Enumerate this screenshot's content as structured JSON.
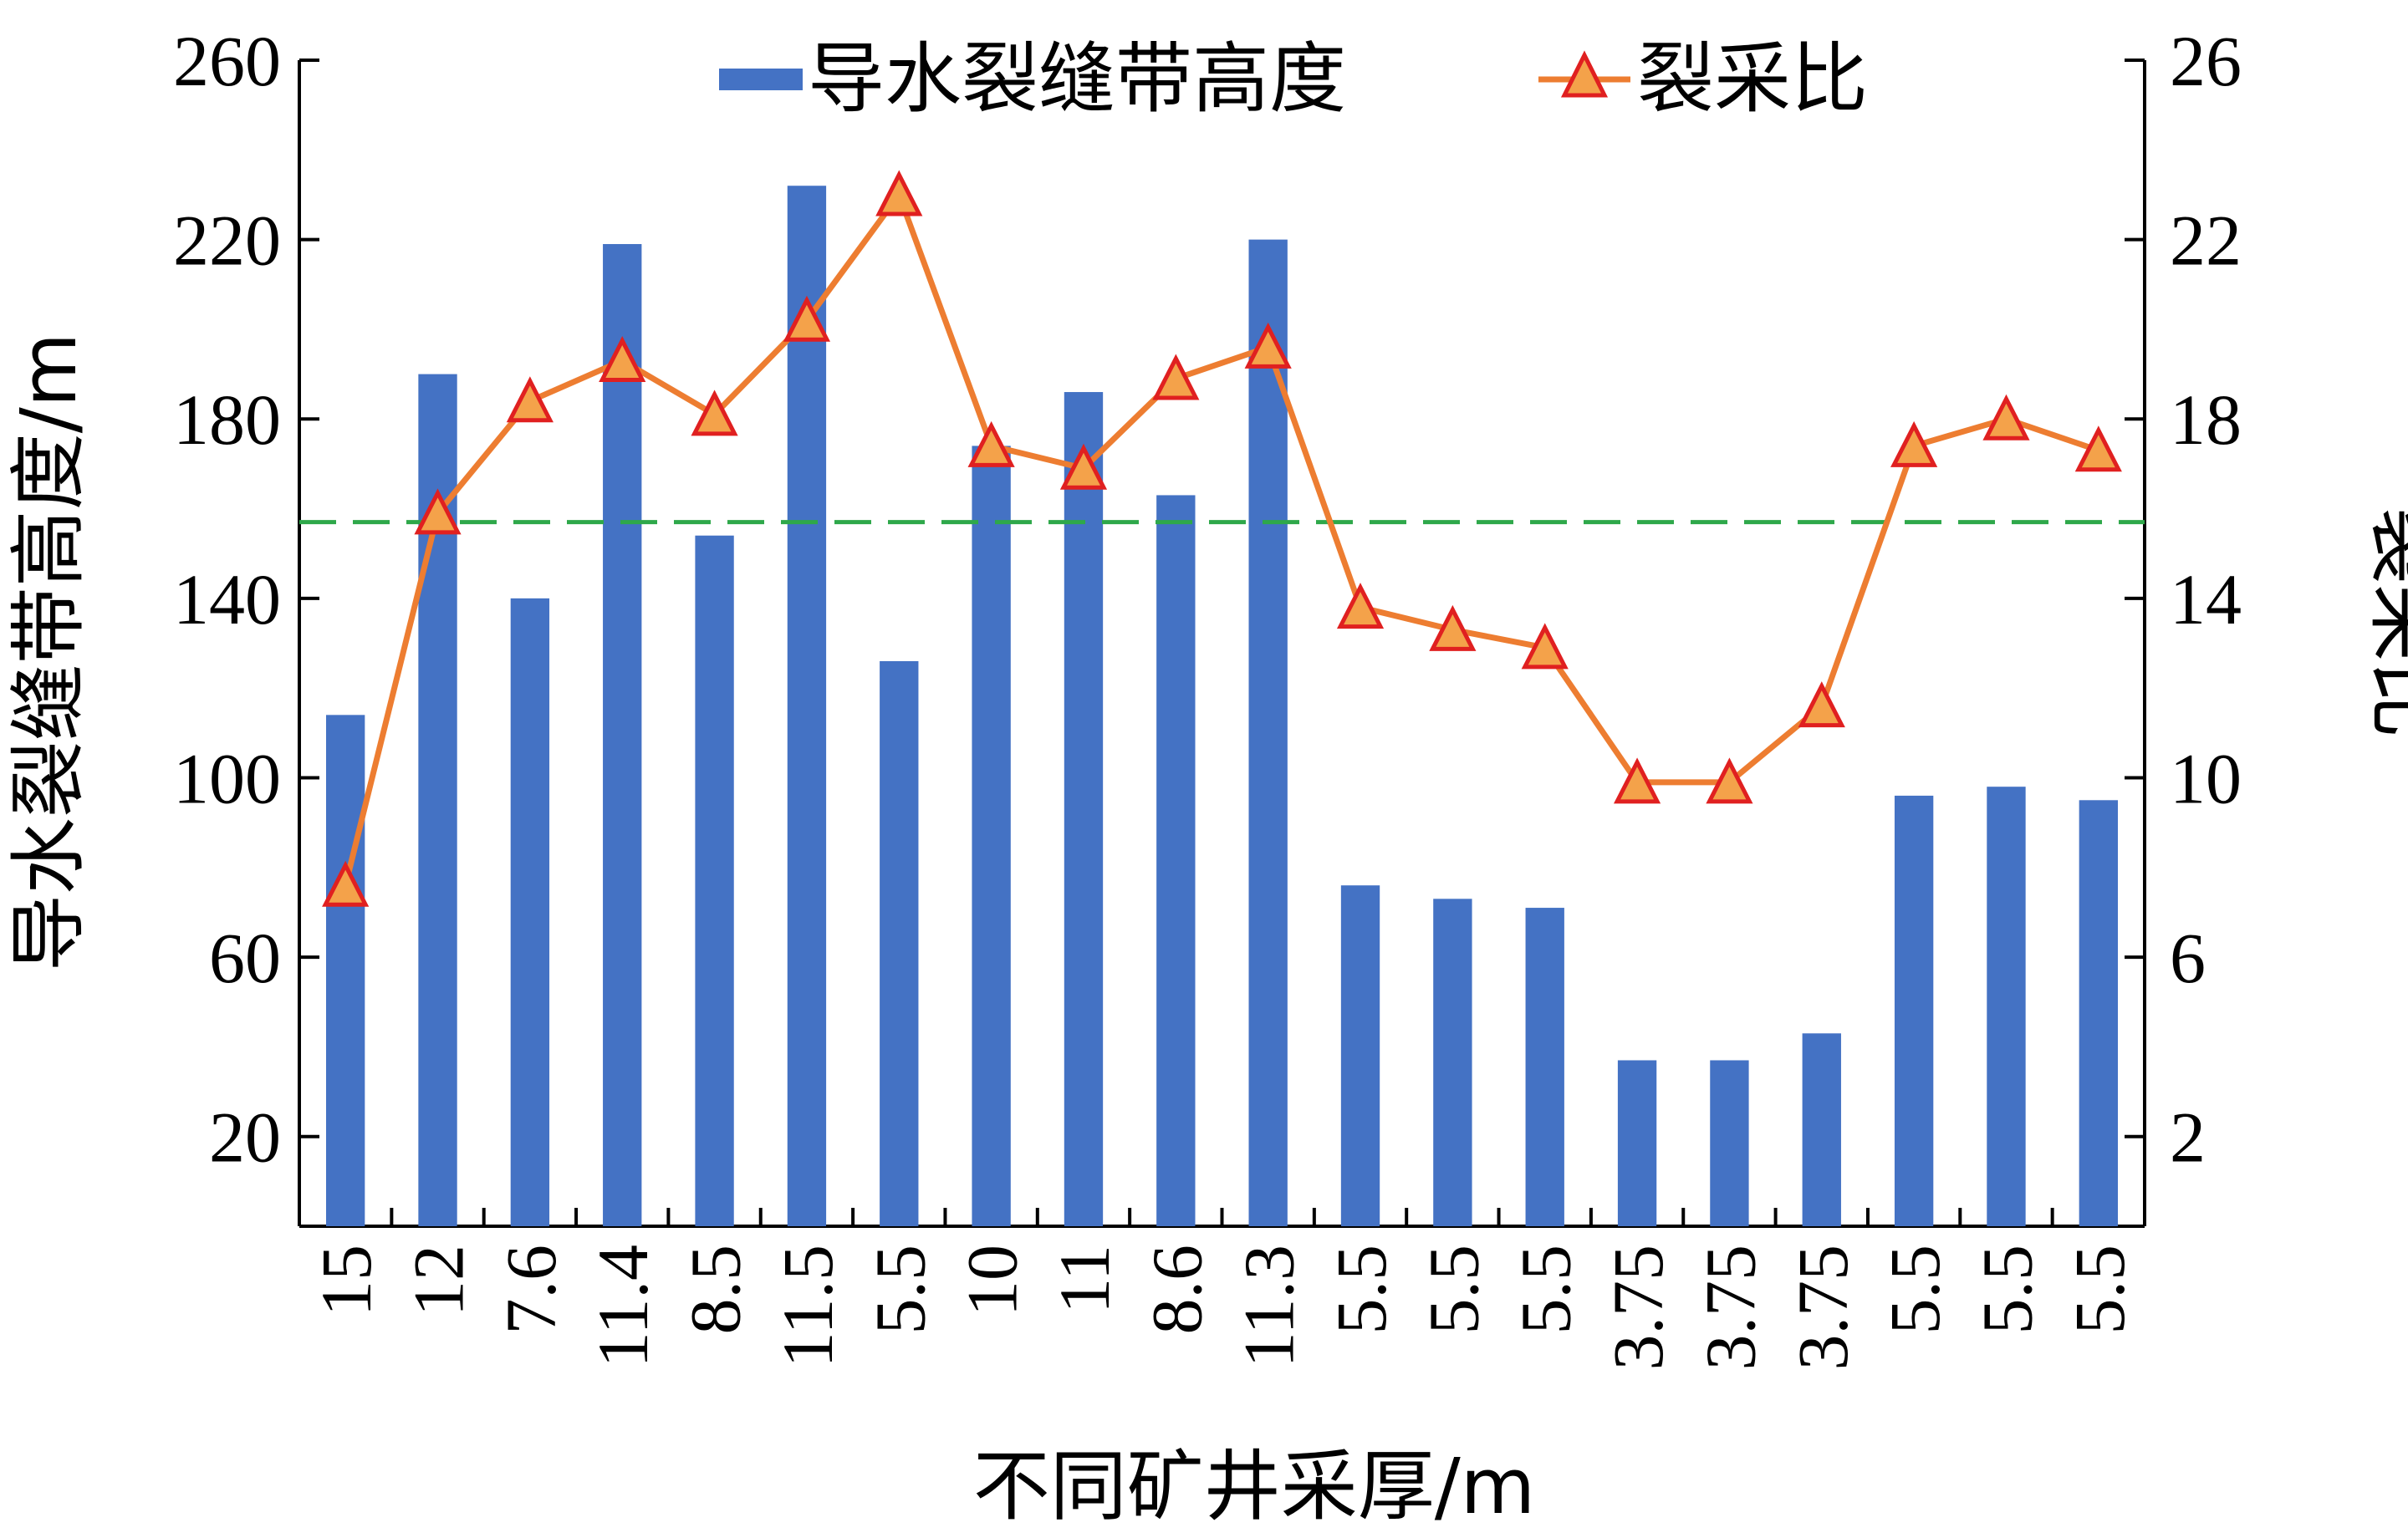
{
  "chart_data": {
    "type": "bar",
    "categories": [
      "15",
      "12",
      "7.6",
      "11.4",
      "8.5",
      "11.5",
      "5.5",
      "10",
      "11",
      "8.6",
      "11.3",
      "5.5",
      "5.5",
      "5.5",
      "3.75",
      "3.75",
      "3.75",
      "5.5",
      "5.5",
      "5.5"
    ],
    "xlabel": "不同矿井采厚/m",
    "ylabel": "导水裂缝带高度/m",
    "y2label": "裂采比",
    "ylim": [
      0,
      260
    ],
    "y2lim": [
      0,
      26
    ],
    "yticks": [
      20,
      60,
      100,
      140,
      180,
      220,
      260
    ],
    "y2ticks": [
      2,
      6,
      10,
      14,
      18,
      22,
      26
    ],
    "series": [
      {
        "name": "导水裂缝带高度",
        "type": "bar",
        "axis": "left",
        "color": "#4472C4",
        "values": [
          114,
          190,
          140,
          219,
          154,
          232,
          126,
          174,
          186,
          163,
          220,
          76,
          73,
          71,
          37,
          37,
          43,
          96,
          98,
          95
        ]
      },
      {
        "name": "裂采比",
        "type": "line",
        "axis": "right",
        "color": "#ED7D31",
        "marker": "triangle",
        "marker_fill": "#F4A24A",
        "marker_edge": "#E02020",
        "values": [
          7.6,
          15.9,
          18.4,
          19.3,
          18.1,
          20.2,
          23.0,
          17.4,
          16.9,
          18.9,
          19.6,
          13.8,
          13.3,
          12.9,
          9.9,
          9.9,
          11.6,
          17.4,
          18.0,
          17.3
        ]
      }
    ],
    "reference_line": {
      "axis": "right",
      "value": 15.7,
      "style": "dashed",
      "color": "#2EA84A"
    },
    "legend_position": "top",
    "grid": false
  }
}
